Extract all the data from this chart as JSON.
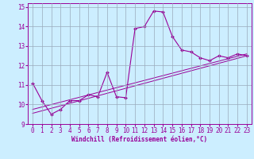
{
  "xlabel": "Windchill (Refroidissement éolien,°C)",
  "bg_color": "#cceeff",
  "line_color": "#990099",
  "grid_color": "#99aabb",
  "xlim": [
    -0.5,
    23.5
  ],
  "ylim": [
    9,
    15.2
  ],
  "yticks": [
    9,
    10,
    11,
    12,
    13,
    14,
    15
  ],
  "xticks": [
    0,
    1,
    2,
    3,
    4,
    5,
    6,
    7,
    8,
    9,
    10,
    11,
    12,
    13,
    14,
    15,
    16,
    17,
    18,
    19,
    20,
    21,
    22,
    23
  ],
  "line1_x": [
    0,
    1,
    2,
    3,
    4,
    5,
    6,
    7,
    8,
    9,
    10,
    11,
    12,
    13,
    14,
    15,
    16,
    17,
    18,
    19,
    20,
    21,
    22,
    23
  ],
  "line1_y": [
    11.1,
    10.2,
    9.5,
    9.75,
    10.2,
    10.2,
    10.5,
    10.4,
    11.65,
    10.4,
    10.35,
    13.9,
    14.0,
    14.8,
    14.75,
    13.5,
    12.8,
    12.7,
    12.4,
    12.25,
    12.5,
    12.4,
    12.6,
    12.5
  ],
  "line2_x": [
    0,
    23
  ],
  "line2_y": [
    9.55,
    12.5
  ],
  "line3_x": [
    0,
    23
  ],
  "line3_y": [
    9.75,
    12.6
  ],
  "tick_fontsize": 5.5,
  "label_fontsize": 5.5
}
